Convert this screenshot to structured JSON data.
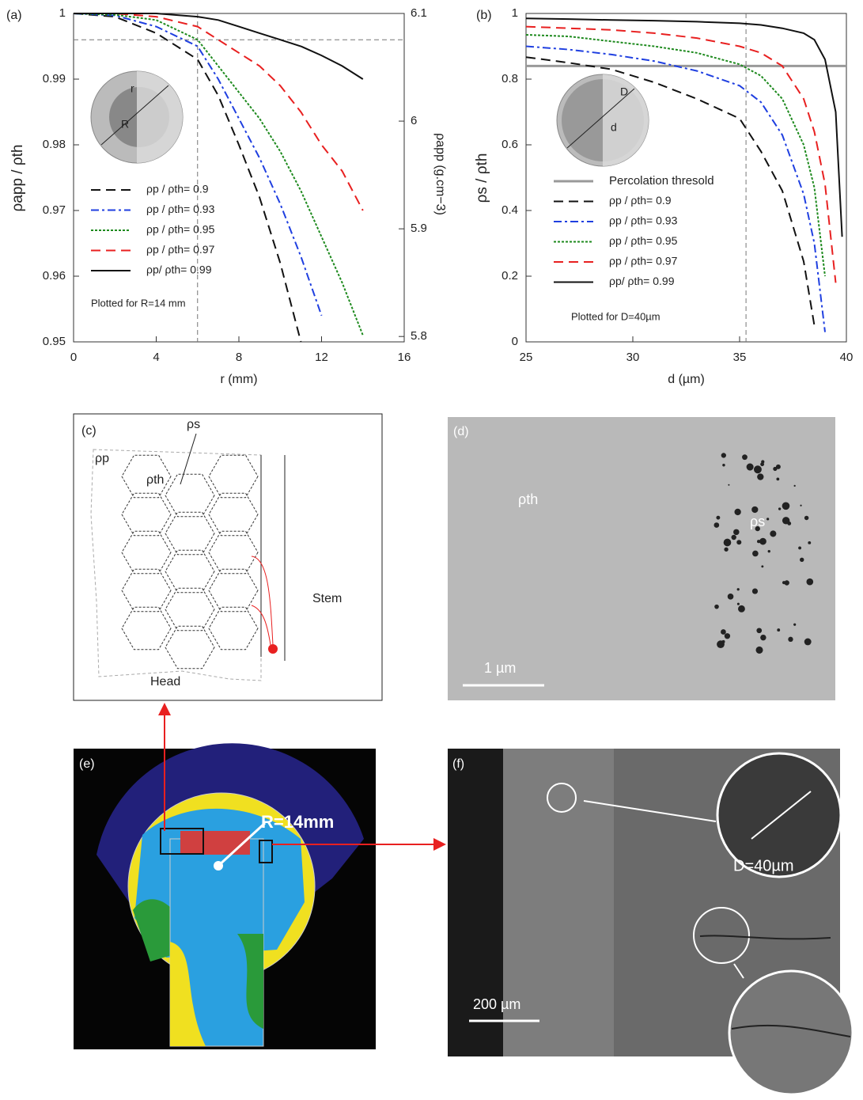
{
  "chart_data": [
    {
      "type": "line",
      "panel_label": "(a)",
      "x_label": "r (mm)",
      "y_label": "ρapp / ρth",
      "y2_label": "ρapp (g.cm−3)",
      "x": [
        0,
        2,
        4,
        6,
        7,
        8,
        9,
        10,
        11,
        12,
        13,
        14
      ],
      "series": [
        {
          "name": "ρp / ρth= 0.9",
          "color": "#111111",
          "style": "dashed",
          "values": [
            1,
            0.9995,
            0.997,
            0.993,
            0.9875,
            0.98,
            0.972,
            0.962,
            0.95,
            null,
            null,
            null
          ]
        },
        {
          "name": "ρp / ρth= 0.93",
          "color": "#1f3fe0",
          "style": "dashdot",
          "values": [
            1,
            0.9997,
            0.998,
            0.995,
            0.99,
            0.984,
            0.978,
            0.971,
            0.963,
            0.954,
            null,
            null
          ]
        },
        {
          "name": "ρp / ρth= 0.95",
          "color": "#1e8a1e",
          "style": "dotted",
          "values": [
            1,
            0.9998,
            0.999,
            0.996,
            0.992,
            0.988,
            0.984,
            0.979,
            0.973,
            0.966,
            0.959,
            0.951
          ]
        },
        {
          "name": "ρp / ρth= 0.97",
          "color": "#e82020",
          "style": "dashed",
          "values": [
            1,
            1,
            0.9995,
            0.998,
            0.996,
            0.994,
            0.992,
            0.989,
            0.985,
            0.98,
            0.976,
            0.97
          ]
        },
        {
          "name": "ρp/ ρth= 0.99",
          "color": "#111111",
          "style": "solid",
          "values": [
            1,
            1,
            1,
            0.9995,
            0.999,
            0.998,
            0.997,
            0.996,
            0.995,
            0.9936,
            0.992,
            0.99
          ]
        }
      ],
      "xlim": [
        0,
        16
      ],
      "xticks": [
        0,
        4,
        8,
        12,
        16
      ],
      "ylim": [
        0.95,
        1
      ],
      "yticks": [
        0.95,
        0.96,
        0.97,
        0.98,
        0.99,
        1
      ],
      "y2lim": [
        5.795,
        6.1
      ],
      "y2ticks": [
        5.8,
        5.9,
        6,
        6.1
      ],
      "reference_lines": {
        "y": 0.996,
        "x": 6
      },
      "note": "Plotted for R=14 mm",
      "inset_labels": [
        "r",
        "R"
      ]
    },
    {
      "type": "line",
      "panel_label": "(b)",
      "x_label": "d (µm)",
      "y_label": "ρs / ρth",
      "x": [
        25,
        27,
        29,
        31,
        33,
        35,
        36,
        37,
        38,
        38.5,
        39,
        39.5,
        39.8
      ],
      "threshold": {
        "name": "Percolation thresold",
        "value": 0.84,
        "color": "#999999"
      },
      "series": [
        {
          "name": "ρp / ρth= 0.9",
          "color": "#111111",
          "style": "dashed",
          "values": [
            0.867,
            0.85,
            0.83,
            0.79,
            0.74,
            0.68,
            0.58,
            0.46,
            0.245,
            0.05,
            null,
            null,
            null
          ]
        },
        {
          "name": "ρp / ρth= 0.93",
          "color": "#1f3fe0",
          "style": "dashdot",
          "values": [
            0.9,
            0.89,
            0.875,
            0.855,
            0.825,
            0.78,
            0.73,
            0.63,
            0.45,
            0.3,
            0.03,
            null,
            null
          ]
        },
        {
          "name": "ρp / ρth= 0.95",
          "color": "#1e8a1e",
          "style": "dotted",
          "values": [
            0.935,
            0.93,
            0.915,
            0.9,
            0.88,
            0.845,
            0.81,
            0.74,
            0.6,
            0.47,
            0.2,
            null,
            null
          ]
        },
        {
          "name": "ρp / ρth= 0.97",
          "color": "#e82020",
          "style": "dashed",
          "values": [
            0.96,
            0.955,
            0.95,
            0.94,
            0.925,
            0.9,
            0.88,
            0.84,
            0.74,
            0.64,
            0.48,
            0.18,
            null
          ]
        },
        {
          "name": "ρp/ ρth= 0.99",
          "color": "#111111",
          "style": "solid",
          "values": [
            0.985,
            0.983,
            0.98,
            0.978,
            0.975,
            0.97,
            0.965,
            0.955,
            0.94,
            0.92,
            0.86,
            0.7,
            0.32
          ]
        }
      ],
      "xlim": [
        25,
        40
      ],
      "xticks": [
        25,
        30,
        35,
        40
      ],
      "ylim": [
        0,
        1
      ],
      "yticks": [
        0,
        0.2,
        0.4,
        0.6,
        0.8,
        1
      ],
      "reference_lines": {
        "x": 35.3
      },
      "note": "Plotted for D=40µm",
      "inset_labels": [
        "D",
        "d"
      ]
    }
  ],
  "panels": {
    "c": {
      "label": "(c)",
      "rho_s": "ρs",
      "rho_p": "ρp",
      "rho_th": "ρth",
      "stem": "Stem",
      "head": "Head"
    },
    "d": {
      "label": "(d)",
      "rho_th": "ρth",
      "rho_s": "ρs",
      "scale": "1 µm"
    },
    "e": {
      "label": "(e)",
      "radius": "R=14mm"
    },
    "f": {
      "label": "(f)",
      "diameter": "D=40µm",
      "scale": "200 µm"
    }
  }
}
